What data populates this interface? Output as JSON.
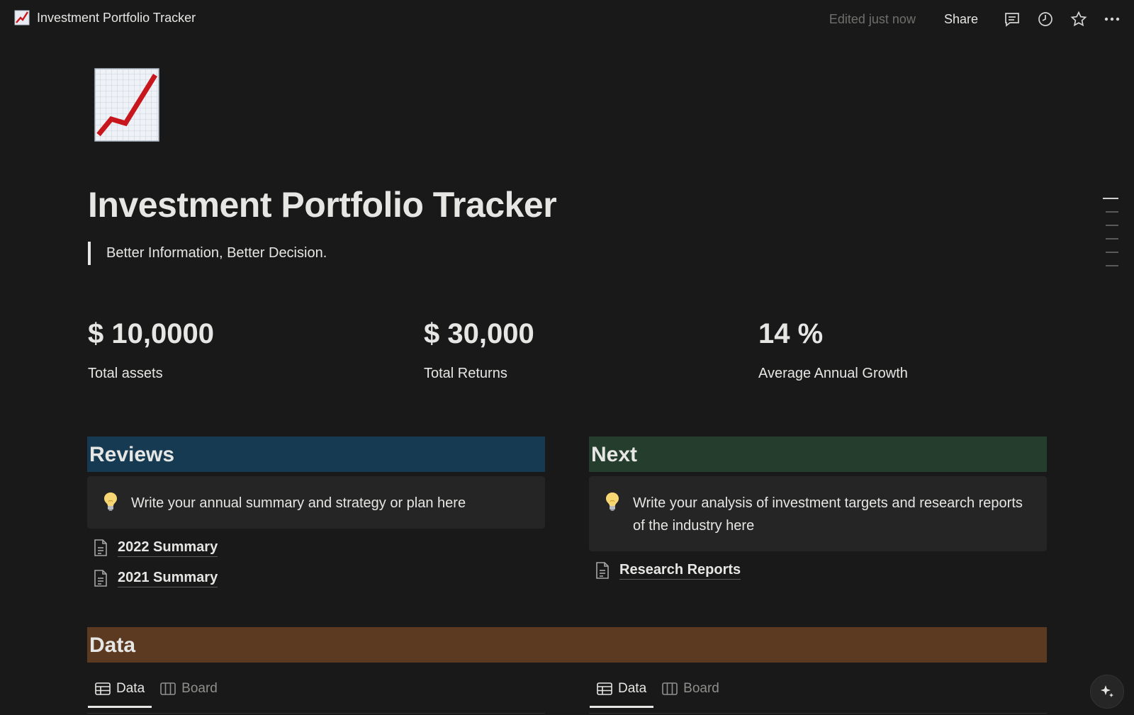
{
  "topbar": {
    "breadcrumb": "Investment Portfolio Tracker",
    "edited": "Edited just now",
    "share": "Share",
    "icons": [
      "comment-icon",
      "clock-icon",
      "star-icon",
      "more-icon"
    ]
  },
  "page": {
    "icon": "chart-increasing-icon",
    "title": "Investment Portfolio Tracker",
    "quote": "Better Information, Better Decision."
  },
  "stats": [
    {
      "value": "$ 10,0000",
      "label": "Total assets"
    },
    {
      "value": "$ 30,000",
      "label": "Total Returns"
    },
    {
      "value": "14 %",
      "label": "Average Annual Growth"
    }
  ],
  "reviews": {
    "heading": "Reviews",
    "heading_color": "#163a51",
    "callout": "Write your annual summary and strategy or plan here",
    "links": [
      "2022 Summary",
      "2021 Summary"
    ]
  },
  "next": {
    "heading": "Next",
    "heading_color": "#253d2d",
    "callout": "Write your analysis of investment targets and research reports of the industry here",
    "links": [
      "Research Reports"
    ]
  },
  "data_section": {
    "heading": "Data",
    "heading_color": "#5c3a22",
    "left_tabs": [
      "Data",
      "Board"
    ],
    "right_tabs": [
      "Data",
      "Board"
    ]
  }
}
